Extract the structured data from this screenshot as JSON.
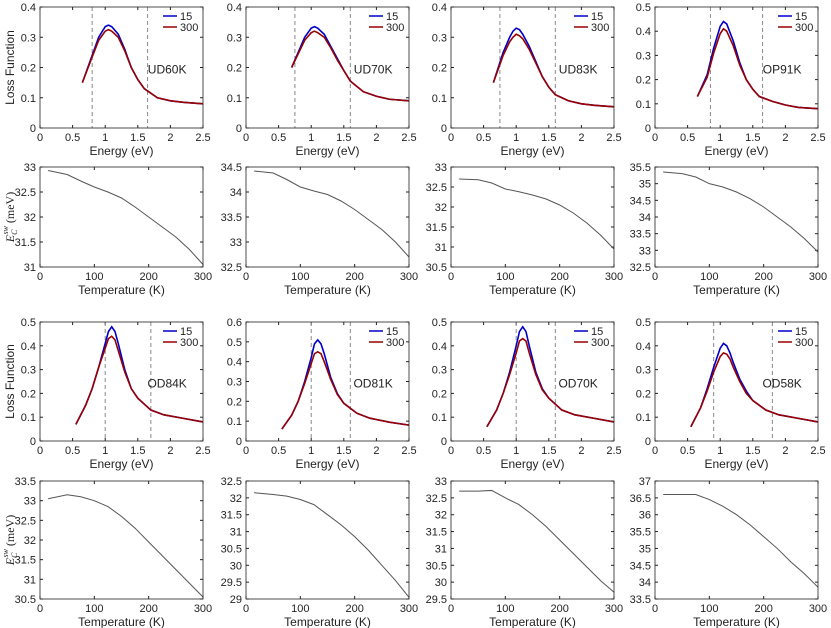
{
  "chart_data": [
    {
      "type": "line",
      "xlabel": "Energy (eV)",
      "ylabel": "Loss Function",
      "annotation": "UD60K",
      "legend": "upper right",
      "x": [
        0.65,
        0.8,
        0.9,
        1.0,
        1.05,
        1.1,
        1.2,
        1.3,
        1.4,
        1.5,
        1.6,
        1.8,
        2.0,
        2.2,
        2.5
      ],
      "series": [
        {
          "name": "15",
          "color": "#0000cc",
          "values": [
            0.15,
            0.24,
            0.3,
            0.335,
            0.34,
            0.335,
            0.31,
            0.26,
            0.2,
            0.16,
            0.13,
            0.1,
            0.09,
            0.085,
            0.08
          ]
        },
        {
          "name": "300",
          "color": "#990000",
          "values": [
            0.15,
            0.235,
            0.29,
            0.32,
            0.325,
            0.32,
            0.3,
            0.255,
            0.2,
            0.16,
            0.13,
            0.1,
            0.09,
            0.085,
            0.08
          ]
        }
      ],
      "xlim": [
        0,
        2.5
      ],
      "xticks": [
        0,
        0.5,
        1,
        1.5,
        2,
        2.5
      ],
      "ylim": [
        0,
        0.4
      ],
      "yticks": [
        0,
        0.1,
        0.2,
        0.3,
        0.4
      ],
      "vlines": [
        0.8,
        1.65
      ]
    },
    {
      "type": "line",
      "xlabel": "Energy (eV)",
      "annotation": "UD70K",
      "legend": "upper right",
      "x": [
        0.7,
        0.8,
        0.9,
        1.0,
        1.05,
        1.1,
        1.2,
        1.3,
        1.4,
        1.5,
        1.6,
        1.8,
        2.0,
        2.2,
        2.5
      ],
      "series": [
        {
          "name": "15",
          "color": "#0000cc",
          "values": [
            0.2,
            0.25,
            0.3,
            0.33,
            0.335,
            0.33,
            0.31,
            0.27,
            0.23,
            0.19,
            0.155,
            0.12,
            0.105,
            0.095,
            0.09
          ]
        },
        {
          "name": "300",
          "color": "#990000",
          "values": [
            0.2,
            0.245,
            0.29,
            0.315,
            0.32,
            0.315,
            0.3,
            0.265,
            0.225,
            0.19,
            0.155,
            0.12,
            0.105,
            0.095,
            0.09
          ]
        }
      ],
      "xlim": [
        0,
        2.5
      ],
      "xticks": [
        0,
        0.5,
        1,
        1.5,
        2,
        2.5
      ],
      "ylim": [
        0,
        0.4
      ],
      "yticks": [
        0,
        0.1,
        0.2,
        0.3,
        0.4
      ],
      "vlines": [
        0.75,
        1.6
      ]
    },
    {
      "type": "line",
      "xlabel": "Energy (eV)",
      "annotation": "UD83K",
      "legend": "upper right",
      "x": [
        0.65,
        0.8,
        0.9,
        0.95,
        1.0,
        1.05,
        1.1,
        1.2,
        1.3,
        1.4,
        1.5,
        1.6,
        1.8,
        2.0,
        2.2,
        2.5
      ],
      "series": [
        {
          "name": "15",
          "color": "#0000cc",
          "values": [
            0.15,
            0.25,
            0.3,
            0.32,
            0.33,
            0.325,
            0.31,
            0.27,
            0.22,
            0.17,
            0.135,
            0.11,
            0.09,
            0.08,
            0.075,
            0.07
          ]
        },
        {
          "name": "300",
          "color": "#990000",
          "values": [
            0.15,
            0.24,
            0.285,
            0.3,
            0.31,
            0.305,
            0.295,
            0.26,
            0.215,
            0.17,
            0.135,
            0.11,
            0.09,
            0.08,
            0.075,
            0.07
          ]
        }
      ],
      "xlim": [
        0,
        2.5
      ],
      "xticks": [
        0,
        0.5,
        1,
        1.5,
        2,
        2.5
      ],
      "ylim": [
        0,
        0.4
      ],
      "yticks": [
        0,
        0.1,
        0.2,
        0.3,
        0.4
      ],
      "vlines": [
        0.75,
        1.6
      ]
    },
    {
      "type": "line",
      "xlabel": "Energy (eV)",
      "annotation": "OP91K",
      "legend": "upper right",
      "x": [
        0.65,
        0.8,
        0.9,
        1.0,
        1.05,
        1.1,
        1.2,
        1.3,
        1.4,
        1.5,
        1.6,
        1.8,
        2.0,
        2.2,
        2.5
      ],
      "series": [
        {
          "name": "15",
          "color": "#0000cc",
          "values": [
            0.13,
            0.22,
            0.33,
            0.42,
            0.44,
            0.43,
            0.36,
            0.27,
            0.2,
            0.16,
            0.13,
            0.11,
            0.095,
            0.085,
            0.08
          ]
        },
        {
          "name": "300",
          "color": "#990000",
          "values": [
            0.13,
            0.21,
            0.31,
            0.39,
            0.41,
            0.4,
            0.34,
            0.26,
            0.2,
            0.16,
            0.13,
            0.11,
            0.095,
            0.085,
            0.08
          ]
        }
      ],
      "xlim": [
        0,
        2.5
      ],
      "xticks": [
        0,
        0.5,
        1,
        1.5,
        2,
        2.5
      ],
      "ylim": [
        0,
        0.5
      ],
      "yticks": [
        0,
        0.1,
        0.2,
        0.3,
        0.4,
        0.5
      ],
      "vlines": [
        0.85,
        1.65
      ]
    },
    {
      "type": "line",
      "xlabel": "Temperature (K)",
      "ylabel": {
        "base": "E",
        "sub": "C",
        "sup": "sw",
        "unit": " (meV)"
      },
      "x": [
        15,
        50,
        75,
        100,
        125,
        150,
        175,
        200,
        225,
        250,
        275,
        300
      ],
      "series": [
        {
          "color": "#555555",
          "values": [
            32.93,
            32.85,
            32.72,
            32.6,
            32.5,
            32.38,
            32.2,
            32.0,
            31.8,
            31.6,
            31.35,
            31.05
          ]
        }
      ],
      "xlim": [
        0,
        300
      ],
      "xticks": [
        0,
        100,
        200,
        300
      ],
      "ylim": [
        31,
        33
      ],
      "yticks": [
        31,
        31.5,
        32,
        32.5,
        33
      ]
    },
    {
      "type": "line",
      "xlabel": "Temperature (K)",
      "x": [
        15,
        50,
        75,
        100,
        125,
        150,
        175,
        200,
        225,
        250,
        275,
        300
      ],
      "series": [
        {
          "color": "#555555",
          "values": [
            34.42,
            34.38,
            34.25,
            34.1,
            34.02,
            33.95,
            33.82,
            33.65,
            33.45,
            33.25,
            33.0,
            32.7
          ]
        }
      ],
      "xlim": [
        0,
        300
      ],
      "xticks": [
        0,
        100,
        200,
        300
      ],
      "ylim": [
        32.5,
        34.5
      ],
      "yticks": [
        32.5,
        33,
        33.5,
        34,
        34.5
      ]
    },
    {
      "type": "line",
      "xlabel": "Temperature (K)",
      "x": [
        15,
        50,
        75,
        100,
        125,
        150,
        175,
        200,
        225,
        250,
        275,
        300
      ],
      "series": [
        {
          "color": "#555555",
          "values": [
            32.7,
            32.68,
            32.6,
            32.45,
            32.38,
            32.3,
            32.2,
            32.05,
            31.85,
            31.6,
            31.3,
            30.95
          ]
        }
      ],
      "xlim": [
        0,
        300
      ],
      "xticks": [
        0,
        100,
        200,
        300
      ],
      "ylim": [
        30.5,
        33
      ],
      "yticks": [
        30.5,
        31,
        31.5,
        32,
        32.5,
        33
      ]
    },
    {
      "type": "line",
      "xlabel": "Temperature (K)",
      "x": [
        15,
        50,
        75,
        100,
        125,
        150,
        175,
        200,
        225,
        250,
        275,
        300
      ],
      "series": [
        {
          "color": "#555555",
          "values": [
            35.35,
            35.3,
            35.2,
            35.0,
            34.9,
            34.75,
            34.55,
            34.3,
            34.0,
            33.7,
            33.35,
            32.95
          ]
        }
      ],
      "xlim": [
        0,
        300
      ],
      "xticks": [
        0,
        100,
        200,
        300
      ],
      "ylim": [
        32.5,
        35.5
      ],
      "yticks": [
        32.5,
        33,
        33.5,
        34,
        34.5,
        35,
        35.5
      ]
    },
    {
      "type": "line",
      "xlabel": "Energy (eV)",
      "ylabel": "Loss Function",
      "annotation": "OD84K",
      "legend": "upper right",
      "x": [
        0.55,
        0.7,
        0.8,
        0.9,
        1.0,
        1.05,
        1.1,
        1.15,
        1.2,
        1.3,
        1.4,
        1.5,
        1.7,
        1.9,
        2.2,
        2.5
      ],
      "series": [
        {
          "name": "15",
          "color": "#0000cc",
          "values": [
            0.07,
            0.15,
            0.22,
            0.31,
            0.41,
            0.46,
            0.48,
            0.46,
            0.41,
            0.3,
            0.22,
            0.18,
            0.13,
            0.11,
            0.095,
            0.08
          ]
        },
        {
          "name": "300",
          "color": "#990000",
          "values": [
            0.07,
            0.15,
            0.22,
            0.31,
            0.39,
            0.43,
            0.44,
            0.425,
            0.38,
            0.29,
            0.22,
            0.18,
            0.13,
            0.11,
            0.095,
            0.08
          ]
        }
      ],
      "xlim": [
        0,
        2.5
      ],
      "xticks": [
        0,
        0.5,
        1,
        1.5,
        2,
        2.5
      ],
      "ylim": [
        0,
        0.5
      ],
      "yticks": [
        0,
        0.1,
        0.2,
        0.3,
        0.4,
        0.5
      ],
      "vlines": [
        1.0,
        1.7
      ]
    },
    {
      "type": "line",
      "xlabel": "Energy (eV)",
      "annotation": "OD81K",
      "legend": "upper right",
      "x": [
        0.55,
        0.7,
        0.8,
        0.9,
        1.0,
        1.05,
        1.1,
        1.15,
        1.2,
        1.3,
        1.4,
        1.5,
        1.7,
        1.9,
        2.2,
        2.5
      ],
      "series": [
        {
          "name": "15",
          "color": "#0000cc",
          "values": [
            0.06,
            0.13,
            0.2,
            0.3,
            0.42,
            0.49,
            0.51,
            0.49,
            0.44,
            0.32,
            0.24,
            0.19,
            0.14,
            0.115,
            0.095,
            0.08
          ]
        },
        {
          "name": "300",
          "color": "#990000",
          "values": [
            0.06,
            0.13,
            0.2,
            0.29,
            0.39,
            0.44,
            0.45,
            0.44,
            0.4,
            0.31,
            0.235,
            0.19,
            0.14,
            0.115,
            0.095,
            0.08
          ]
        }
      ],
      "xlim": [
        0,
        2.5
      ],
      "xticks": [
        0,
        0.5,
        1,
        1.5,
        2,
        2.5
      ],
      "ylim": [
        0,
        0.6
      ],
      "yticks": [
        0,
        0.1,
        0.2,
        0.3,
        0.4,
        0.5,
        0.6
      ],
      "vlines": [
        1.0,
        1.6
      ]
    },
    {
      "type": "line",
      "xlabel": "Energy (eV)",
      "annotation": "OD70K",
      "legend": "upper right",
      "x": [
        0.55,
        0.7,
        0.8,
        0.9,
        1.0,
        1.05,
        1.1,
        1.15,
        1.2,
        1.3,
        1.4,
        1.5,
        1.7,
        1.9,
        2.2,
        2.5
      ],
      "series": [
        {
          "name": "15",
          "color": "#0000cc",
          "values": [
            0.06,
            0.13,
            0.2,
            0.29,
            0.4,
            0.46,
            0.48,
            0.46,
            0.4,
            0.29,
            0.22,
            0.18,
            0.13,
            0.11,
            0.095,
            0.08
          ]
        },
        {
          "name": "300",
          "color": "#990000",
          "values": [
            0.06,
            0.13,
            0.2,
            0.28,
            0.37,
            0.42,
            0.43,
            0.42,
            0.37,
            0.28,
            0.215,
            0.18,
            0.13,
            0.11,
            0.095,
            0.08
          ]
        }
      ],
      "xlim": [
        0,
        2.5
      ],
      "xticks": [
        0,
        0.5,
        1,
        1.5,
        2,
        2.5
      ],
      "ylim": [
        0,
        0.5
      ],
      "yticks": [
        0,
        0.1,
        0.2,
        0.3,
        0.4,
        0.5
      ],
      "vlines": [
        1.0,
        1.6
      ]
    },
    {
      "type": "line",
      "xlabel": "Energy (eV)",
      "annotation": "OD58K",
      "legend": "upper right",
      "x": [
        0.55,
        0.7,
        0.8,
        0.9,
        1.0,
        1.05,
        1.1,
        1.15,
        1.2,
        1.3,
        1.4,
        1.5,
        1.7,
        1.9,
        2.2,
        2.5
      ],
      "series": [
        {
          "name": "15",
          "color": "#0000cc",
          "values": [
            0.06,
            0.14,
            0.22,
            0.31,
            0.39,
            0.41,
            0.4,
            0.37,
            0.33,
            0.26,
            0.21,
            0.17,
            0.13,
            0.11,
            0.095,
            0.08
          ]
        },
        {
          "name": "300",
          "color": "#990000",
          "values": [
            0.06,
            0.14,
            0.21,
            0.29,
            0.355,
            0.37,
            0.365,
            0.345,
            0.31,
            0.25,
            0.2,
            0.17,
            0.13,
            0.11,
            0.095,
            0.08
          ]
        }
      ],
      "xlim": [
        0,
        2.5
      ],
      "xticks": [
        0,
        0.5,
        1,
        1.5,
        2,
        2.5
      ],
      "ylim": [
        0,
        0.5
      ],
      "yticks": [
        0,
        0.1,
        0.2,
        0.3,
        0.4,
        0.5
      ],
      "vlines": [
        0.9,
        1.8
      ]
    },
    {
      "type": "line",
      "xlabel": "Temperature (K)",
      "ylabel": {
        "base": "E",
        "sub": "C",
        "sup": "sw",
        "unit": " (meV)"
      },
      "x": [
        15,
        50,
        75,
        100,
        125,
        150,
        175,
        200,
        225,
        250,
        275,
        300
      ],
      "series": [
        {
          "color": "#555555",
          "values": [
            33.05,
            33.15,
            33.1,
            33.0,
            32.85,
            32.6,
            32.3,
            31.95,
            31.6,
            31.25,
            30.9,
            30.55
          ]
        }
      ],
      "xlim": [
        0,
        300
      ],
      "xticks": [
        0,
        100,
        200,
        300
      ],
      "ylim": [
        30.5,
        33.5
      ],
      "yticks": [
        30.5,
        31,
        31.5,
        32,
        32.5,
        33,
        33.5
      ]
    },
    {
      "type": "line",
      "xlabel": "Temperature (K)",
      "x": [
        15,
        50,
        75,
        100,
        125,
        150,
        175,
        200,
        225,
        250,
        275,
        300
      ],
      "series": [
        {
          "color": "#555555",
          "values": [
            32.15,
            32.1,
            32.05,
            31.95,
            31.8,
            31.5,
            31.2,
            30.85,
            30.45,
            30.0,
            29.55,
            29.05
          ]
        }
      ],
      "xlim": [
        0,
        300
      ],
      "xticks": [
        0,
        100,
        200,
        300
      ],
      "ylim": [
        29,
        32.5
      ],
      "yticks": [
        29,
        29.5,
        30,
        30.5,
        31,
        31.5,
        32,
        32.5
      ]
    },
    {
      "type": "line",
      "xlabel": "Temperature (K)",
      "x": [
        15,
        50,
        75,
        100,
        125,
        150,
        175,
        200,
        225,
        250,
        275,
        300
      ],
      "series": [
        {
          "color": "#555555",
          "values": [
            32.7,
            32.7,
            32.72,
            32.5,
            32.3,
            32.0,
            31.65,
            31.25,
            30.85,
            30.45,
            30.05,
            29.7
          ]
        }
      ],
      "xlim": [
        0,
        300
      ],
      "xticks": [
        0,
        100,
        200,
        300
      ],
      "ylim": [
        29.5,
        33
      ],
      "yticks": [
        29.5,
        30,
        30.5,
        31,
        31.5,
        32,
        32.5,
        33
      ]
    },
    {
      "type": "line",
      "xlabel": "Temperature (K)",
      "x": [
        15,
        50,
        75,
        100,
        125,
        150,
        175,
        200,
        225,
        250,
        275,
        300
      ],
      "series": [
        {
          "color": "#555555",
          "values": [
            36.6,
            36.6,
            36.6,
            36.45,
            36.25,
            36.0,
            35.7,
            35.35,
            35.0,
            34.6,
            34.25,
            33.85
          ]
        }
      ],
      "xlim": [
        0,
        300
      ],
      "xticks": [
        0,
        100,
        200,
        300
      ],
      "ylim": [
        33.5,
        37
      ],
      "yticks": [
        33.5,
        34,
        34.5,
        35,
        35.5,
        36,
        36.5,
        37
      ]
    }
  ]
}
